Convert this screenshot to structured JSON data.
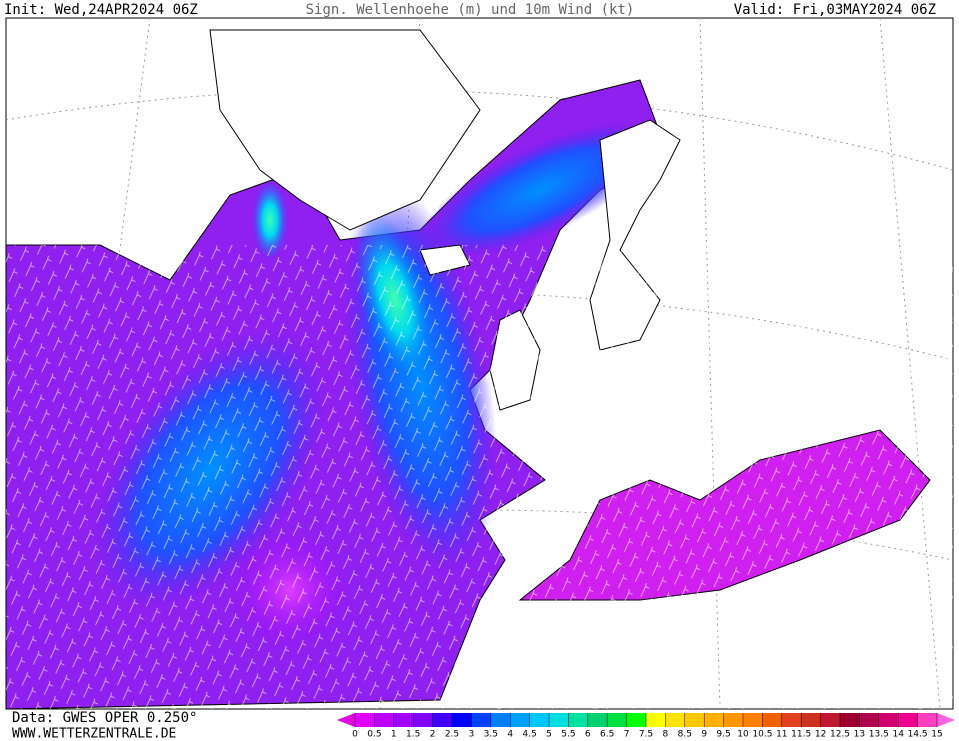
{
  "header": {
    "init": "Init: Wed,24APR2024 06Z",
    "title": "Sign. Wellenhoehe (m) und 10m Wind (kt)",
    "valid": "Valid: Fri,03MAY2024 06Z"
  },
  "footer": {
    "source": "Data: GWES OPER 0.250°",
    "site": "WWW.WETTERZENTRALE.DE"
  },
  "legend": {
    "ticks": [
      0,
      0.5,
      1,
      1.5,
      2,
      2.5,
      3,
      3.5,
      4,
      4.5,
      5,
      5.5,
      6,
      6.5,
      7,
      7.5,
      8,
      8.5,
      9,
      9.5,
      10,
      10.5,
      11,
      11.5,
      12,
      12.5,
      13,
      13.5,
      14,
      14.5,
      15
    ],
    "colors": [
      "#e000e0",
      "#e000ff",
      "#c000ff",
      "#a000ff",
      "#8000ff",
      "#4000ff",
      "#0000ff",
      "#0040ff",
      "#0080ff",
      "#00a0ff",
      "#00c8ff",
      "#00e0e0",
      "#00e0a0",
      "#00d070",
      "#00e040",
      "#00ff00",
      "#ffff00",
      "#ffe000",
      "#ffc800",
      "#ffb000",
      "#ff9600",
      "#ff8000",
      "#f06000",
      "#e04020",
      "#d03020",
      "#c01830",
      "#a00030",
      "#b00050",
      "#d00070",
      "#f00090",
      "#ff40c0",
      "#ff60e0"
    ]
  }
}
